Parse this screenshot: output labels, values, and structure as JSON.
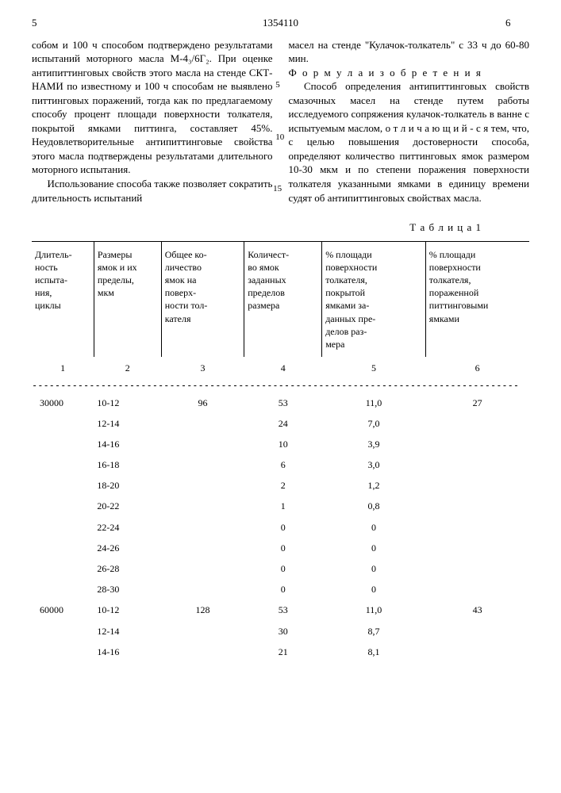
{
  "header": {
    "page_left": "5",
    "doc_number": "1354110",
    "page_right": "6"
  },
  "left_column": {
    "p1": "собом и 100 ч способом подтверждено результатами испытаний моторного масла М-4₃/6Г₂. При оценке антипиттинговых свойств этого масла на стенде СКТ-НАМИ по известному и 100 ч способам не выявлено питтинговых поражений, тогда как по предлагаемому способу процент площади поверхности толкателя, покрытой ямками питтинга, составляет 45%. Неудовлетворительные антипиттинговые свойства этого масла подтверждены результатами длительного моторного испытания.",
    "p2": "Использование способа также позволяет сократить длительность испытаний"
  },
  "right_column": {
    "p1": "масел на стенде \"Кулачок-толкатель\" с 33 ч до 60-80 мин.",
    "formula_label": "Ф о р м у л а   и з о б р е т е н и я",
    "p2": "Способ определения антипиттинговых свойств смазочных масел на стенде путем работы исследуемого сопряжения кулачок-толкатель в ванне с испытуемым маслом, о т л и ч а ю щ и й - с я  тем, что, с целью повышения достоверности способа, определяют количество питтинговых ямок размером 10-30 мкм и по степени поражения поверхности толкателя указанными ямками в единицу времени судят об антипиттинговых свойствах масла."
  },
  "line_markers": {
    "m5": "5",
    "m10": "10",
    "m15": "15"
  },
  "table": {
    "title": "Т а б л и ц а   1",
    "headers": [
      "Длитель-\nность\nиспыта-\nния,\nциклы",
      "Размеры\nямок и их\nпределы,\nмкм",
      "Общее ко-\nличество\nямок на\nповерх-\nности тол-\nкателя",
      "Количест-\nво ямок\nзаданных\nпределов\nразмера",
      "% площади\nповерхности\nтолкателя,\nпокрытой\nямками за-\nданных пре-\nделов раз-\nмера",
      "% площади\nповерхности\nтолкателя,\nпораженной\nпиттинговыми\nямками"
    ],
    "col_nums": [
      "1",
      "2",
      "3",
      "4",
      "5",
      "6"
    ],
    "dashes": "-------------------------------------------------------------------------------------",
    "rows": [
      [
        "30000",
        "10-12",
        "96",
        "53",
        "11,0",
        "27"
      ],
      [
        "",
        "12-14",
        "",
        "24",
        "7,0",
        ""
      ],
      [
        "",
        "14-16",
        "",
        "10",
        "3,9",
        ""
      ],
      [
        "",
        "16-18",
        "",
        "6",
        "3,0",
        ""
      ],
      [
        "",
        "18-20",
        "",
        "2",
        "1,2",
        ""
      ],
      [
        "",
        "20-22",
        "",
        "1",
        "0,8",
        ""
      ],
      [
        "",
        "22-24",
        "",
        "0",
        "0",
        ""
      ],
      [
        "",
        "24-26",
        "",
        "0",
        "0",
        ""
      ],
      [
        "",
        "26-28",
        "",
        "0",
        "0",
        ""
      ],
      [
        "",
        "28-30",
        "",
        "0",
        "0",
        ""
      ],
      [
        "60000",
        "10-12",
        "128",
        "53",
        "11,0",
        "43"
      ],
      [
        "",
        "12-14",
        "",
        "30",
        "8,7",
        ""
      ],
      [
        "",
        "14-16",
        "",
        "21",
        "8,1",
        ""
      ]
    ]
  }
}
